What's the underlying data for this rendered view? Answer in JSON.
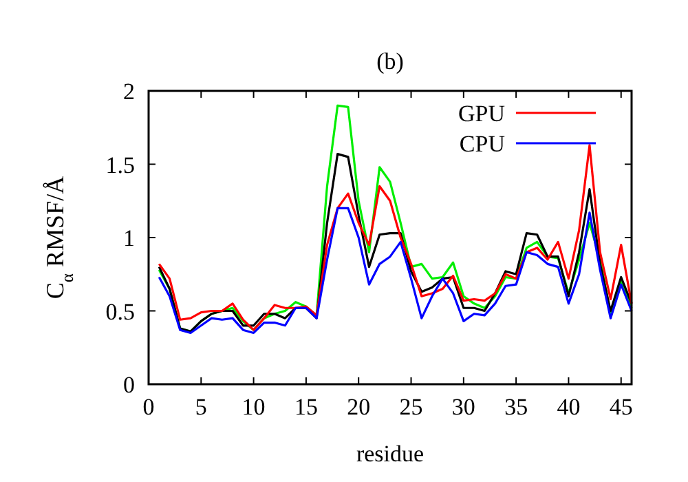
{
  "chart_data": {
    "type": "line",
    "title": "(b)",
    "xlabel": "residue",
    "ylabel": "C$_{α}$ RMSF/Å",
    "x": [
      1,
      2,
      3,
      4,
      5,
      6,
      7,
      8,
      9,
      10,
      11,
      12,
      13,
      14,
      15,
      16,
      17,
      18,
      19,
      20,
      21,
      22,
      23,
      24,
      25,
      26,
      27,
      28,
      29,
      30,
      31,
      32,
      33,
      34,
      35,
      36,
      37,
      38,
      39,
      40,
      41,
      42,
      43,
      44,
      45,
      46
    ],
    "series": [
      {
        "color": "#00ee00",
        "values": [
          0.78,
          0.65,
          0.38,
          0.36,
          0.43,
          0.48,
          0.5,
          0.52,
          0.43,
          0.37,
          0.45,
          0.48,
          0.5,
          0.56,
          0.53,
          0.47,
          1.35,
          1.9,
          1.89,
          1.25,
          0.9,
          1.48,
          1.38,
          1.1,
          0.8,
          0.82,
          0.72,
          0.73,
          0.83,
          0.6,
          0.55,
          0.52,
          0.6,
          0.73,
          0.72,
          0.93,
          0.97,
          0.87,
          0.86,
          0.62,
          0.85,
          1.1,
          0.85,
          0.48,
          0.7,
          0.52
        ]
      },
      {
        "color": "#000000",
        "values": [
          0.8,
          0.65,
          0.38,
          0.36,
          0.43,
          0.48,
          0.5,
          0.5,
          0.4,
          0.4,
          0.48,
          0.48,
          0.45,
          0.52,
          0.52,
          0.45,
          1.1,
          1.57,
          1.55,
          1.15,
          0.8,
          1.02,
          1.03,
          1.03,
          0.77,
          0.63,
          0.66,
          0.72,
          0.73,
          0.52,
          0.52,
          0.5,
          0.62,
          0.77,
          0.75,
          1.03,
          1.02,
          0.87,
          0.87,
          0.6,
          0.9,
          1.33,
          0.82,
          0.5,
          0.73,
          0.55
        ]
      },
      {
        "name": "GPU",
        "color": "#ff0000",
        "values": [
          0.82,
          0.72,
          0.44,
          0.45,
          0.49,
          0.5,
          0.5,
          0.55,
          0.44,
          0.37,
          0.45,
          0.54,
          0.52,
          0.52,
          0.53,
          0.47,
          0.95,
          1.2,
          1.3,
          1.1,
          0.95,
          1.35,
          1.25,
          1.0,
          0.82,
          0.6,
          0.62,
          0.65,
          0.74,
          0.57,
          0.58,
          0.57,
          0.62,
          0.75,
          0.72,
          0.9,
          0.93,
          0.85,
          0.97,
          0.72,
          1.05,
          1.63,
          0.9,
          0.58,
          0.95,
          0.55
        ]
      },
      {
        "name": "CPU",
        "color": "#0000ff",
        "values": [
          0.73,
          0.6,
          0.37,
          0.35,
          0.4,
          0.45,
          0.44,
          0.45,
          0.37,
          0.35,
          0.42,
          0.42,
          0.4,
          0.52,
          0.52,
          0.45,
          0.85,
          1.2,
          1.2,
          1.0,
          0.68,
          0.82,
          0.87,
          0.97,
          0.72,
          0.45,
          0.6,
          0.72,
          0.62,
          0.43,
          0.48,
          0.47,
          0.55,
          0.67,
          0.68,
          0.9,
          0.88,
          0.82,
          0.8,
          0.55,
          0.75,
          1.17,
          0.78,
          0.45,
          0.68,
          0.5
        ]
      }
    ],
    "xlim": [
      0,
      46
    ],
    "xticks": [
      0,
      5,
      10,
      15,
      20,
      25,
      30,
      35,
      40,
      45
    ],
    "ylim": [
      0,
      2
    ],
    "yticks": [
      0,
      0.5,
      1,
      1.5,
      2
    ],
    "legend": "top right",
    "marker": "none",
    "line_style": "solid",
    "grid": false
  }
}
